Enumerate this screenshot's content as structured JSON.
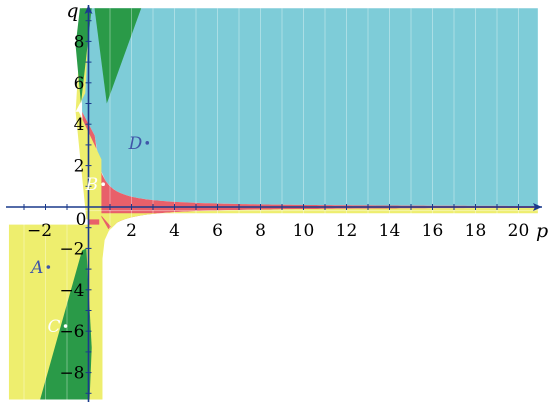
{
  "chart_data": {
    "type": "area",
    "title": "",
    "xlabel": "p",
    "ylabel": "q",
    "xlim": [
      -3.7,
      20.9
    ],
    "ylim": [
      -9.3,
      9.6
    ],
    "x_ticks": [
      -2,
      2,
      4,
      6,
      8,
      10,
      12,
      14,
      16,
      18,
      20
    ],
    "y_ticks": [
      -8,
      -6,
      -4,
      -2,
      2,
      4,
      6,
      8
    ],
    "origin_label": "0",
    "grid": false,
    "legend": "none",
    "regions": [
      {
        "name": "A",
        "color": "#EEEE6E",
        "label_at": [
          -2.1,
          -2.9
        ],
        "label_color": "#3F55A8"
      },
      {
        "name": "B",
        "color": "#E8606A",
        "label_at": [
          0.45,
          1.1
        ],
        "label_color": "#FFFFFF"
      },
      {
        "name": "C",
        "color": "#2A9A48",
        "label_at": [
          -1.3,
          -5.75
        ],
        "label_color": "#FFFFFF"
      },
      {
        "name": "D",
        "color": "#7ECCD8",
        "label_at": [
          2.5,
          3.1
        ],
        "label_color": "#3F55A8"
      }
    ],
    "boundaries": [
      {
        "between": [
          "B",
          "D"
        ],
        "equation": "q = 1/p",
        "x_range": [
          0.29,
          20.9
        ]
      },
      {
        "between": [
          "B",
          "A"
        ],
        "equation": "q = -1/p",
        "x_range": [
          0.11,
          20.9
        ]
      },
      {
        "between": [
          "A",
          "D"
        ],
        "equation": "q = -2p + 4",
        "x_range": [
          -0.3,
          0.29
        ]
      },
      {
        "between": [
          "A",
          "C"
        ],
        "equation": "q = -5p",
        "x_range": [
          -1.85,
          0.16
        ]
      },
      {
        "between": [
          "C",
          "D"
        ],
        "equation": "q = -2p + 4 (upper) / q = 4p - 1 (lower)",
        "x_range": [
          -3.7,
          2.6
        ]
      }
    ]
  }
}
